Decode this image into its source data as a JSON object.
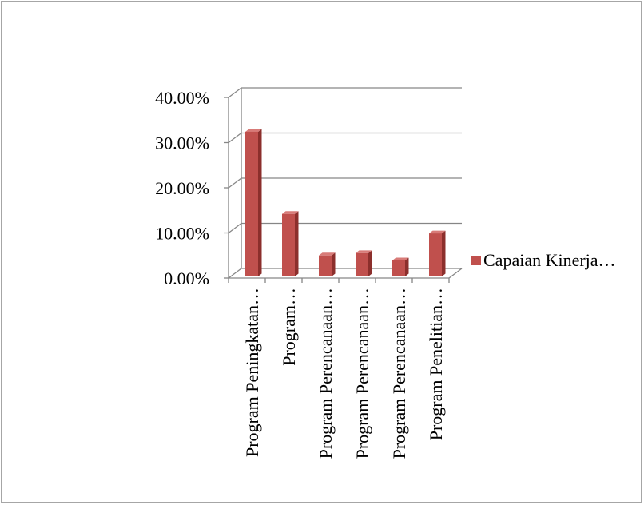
{
  "chart_data": {
    "type": "bar",
    "style": "3d-clustered-column",
    "categories": [
      "Program Peningkatan…",
      "Program…",
      "Program Perencanaan…",
      "Program Perencanaan…",
      "Program Perencanaan…",
      "Program Penelitian…"
    ],
    "series": [
      {
        "name": "Capaian Kinerja…",
        "values": [
          32.4,
          14.2,
          5.0,
          5.5,
          3.9,
          9.9
        ],
        "color": "#c0504d"
      }
    ],
    "y_ticks": [
      "0.00%",
      "10.00%",
      "20.00%",
      "30.00%",
      "40.00%"
    ],
    "ylim": [
      0,
      40
    ],
    "y_unit": "percent",
    "grid": true,
    "legend_position": "right",
    "title": "",
    "xlabel": "",
    "ylabel": ""
  },
  "colors": {
    "bar_front": "#c0504d",
    "bar_side": "#8c2f2c",
    "bar_top": "#d87b78",
    "gridline": "#868686",
    "frame_border": "#a6a6a6"
  }
}
